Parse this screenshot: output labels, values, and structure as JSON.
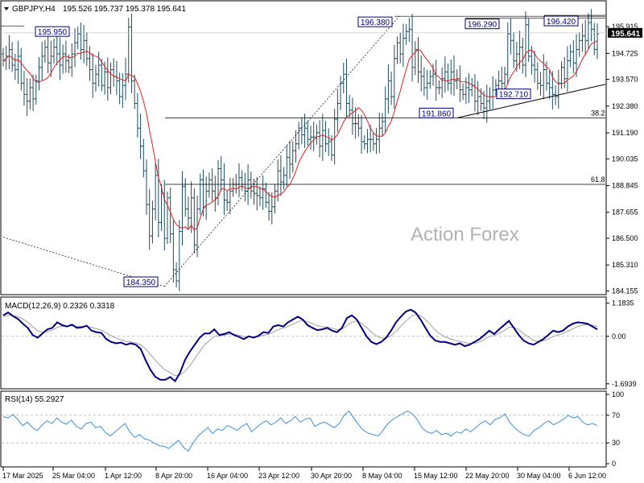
{
  "header": {
    "symbol_timeframe": "GBPJPY,H4",
    "ohlc": "195.526 195.737 195.378 195.641"
  },
  "watermark": "Action Forex",
  "colors": {
    "bar": "#1e4e60",
    "ma": "#e02020",
    "macd": "#000080",
    "macd_signal": "#a0a0a0",
    "rsi": "#3c8ed8",
    "level_line": "#000000",
    "border": "#000000"
  },
  "chart_data": [
    {
      "type": "ohlc",
      "panel": "price",
      "title": "GBPJPY,H4",
      "ylim": [
        184.1,
        196.6
      ],
      "y_ticks": [
        "195.915",
        "194.725",
        "193.570",
        "192.380",
        "191.190",
        "190.035",
        "188.845",
        "187.655",
        "186.500",
        "185.310",
        "184.155"
      ],
      "x_ticks": [
        "17 Mar 2025",
        "25 Mar 04:00",
        "1 Apr 12:00",
        "8 Apr 20:00",
        "16 Apr 04:00",
        "23 Apr 12:00",
        "30 Apr 20:00",
        "8 May 04:00",
        "15 May 12:00",
        "22 May 20:00",
        "30 May 04:00",
        "6 Jun 12:00"
      ],
      "current_price": "195.641",
      "series": [
        {
          "name": "close",
          "values": [
            194.4,
            194.6,
            194.9,
            194.2,
            194.0,
            194.6,
            193.4,
            192.9,
            192.6,
            193.2,
            192.7,
            193.5,
            194.1,
            194.6,
            195.0,
            194.3,
            194.6,
            195.0,
            194.7,
            194.2,
            194.7,
            194.4,
            194.1,
            194.7,
            195.2,
            195.6,
            194.9,
            195.3,
            194.5,
            194.0,
            193.4,
            193.8,
            194.2,
            193.3,
            193.9,
            193.2,
            194.0,
            193.7,
            193.5,
            192.8,
            193.3,
            193.8,
            195.9,
            193.5,
            192.5,
            191.4,
            190.6,
            189.5,
            188.0,
            186.6,
            187.8,
            189.3,
            187.2,
            188.5,
            186.5,
            188.3,
            186.7,
            185.1,
            184.6,
            186.8,
            188.8,
            187.8,
            187.4,
            188.3,
            186.2,
            187.8,
            189.1,
            187.9,
            188.6,
            189.1,
            188.6,
            188.3,
            189.6,
            189.1,
            188.2,
            188.1,
            188.6,
            188.9,
            188.9,
            189.2,
            188.9,
            188.6,
            189.1,
            188.6,
            188.5,
            188.4,
            188.3,
            188.7,
            188.1,
            187.7,
            187.9,
            188.6,
            189.5,
            189.0,
            189.3,
            190.1,
            189.8,
            190.4,
            190.7,
            191.4,
            191.1,
            191.4,
            190.9,
            191.0,
            191.0,
            191.2,
            190.6,
            191.3,
            190.7,
            190.8,
            190.2,
            191.8,
            192.5,
            193.4,
            193.8,
            192.5,
            192.2,
            191.6,
            191.6,
            191.4,
            190.8,
            190.7,
            190.9,
            190.9,
            190.7,
            190.9,
            191.4,
            191.7,
            192.7,
            193.5,
            192.8,
            194.5,
            195.2,
            194.7,
            195.4,
            195.7,
            195.8,
            194.1,
            194.9,
            193.9,
            193.7,
            193.2,
            193.4,
            193.7,
            193.8,
            193.2,
            193.2,
            193.6,
            193.9,
            193.4,
            193.9,
            193.5,
            193.6,
            193.1,
            192.9,
            193.2,
            193.1,
            193.3,
            192.6,
            192.8,
            192.5,
            192.3,
            192.6,
            192.8,
            193.1,
            193.3,
            193.5,
            193.4,
            193.8,
            195.6,
            195.3,
            194.4,
            194.7,
            195.0,
            194.2,
            196.0,
            194.6,
            194.2,
            194.0,
            193.4,
            193.3,
            194.0,
            193.4,
            193.2,
            192.9,
            192.8,
            193.4,
            194.1,
            193.6,
            194.4,
            194.8,
            194.3,
            194.9,
            195.3,
            195.5,
            195.3,
            196.1,
            195.8,
            194.9,
            195.6
          ]
        },
        {
          "name": "moving-average",
          "values": []
        }
      ],
      "levels": [
        {
          "label": "38.2",
          "value": 191.86
        },
        {
          "label": "61.8",
          "value": 188.9
        }
      ],
      "annotations": [
        {
          "text": "195.950",
          "value": 195.95
        },
        {
          "text": "184.350",
          "value": 184.35
        },
        {
          "text": "196.380",
          "value": 196.38
        },
        {
          "text": "196.290",
          "value": 196.29
        },
        {
          "text": "196.420",
          "value": 196.42
        },
        {
          "text": "192.710",
          "value": 192.71
        },
        {
          "text": "191.860",
          "value": 191.86
        }
      ]
    },
    {
      "type": "line",
      "panel": "macd",
      "title": "MACD(12,26,9) 0.2326 0.3318",
      "ylim": [
        -1.7,
        1.2
      ],
      "y_ticks": [
        "1.1835",
        "0.00",
        "-1.6939"
      ],
      "series": [
        {
          "name": "macd",
          "values": [
            0.75,
            0.85,
            0.72,
            0.62,
            0.45,
            0.3,
            0.05,
            -0.05,
            0.1,
            0.25,
            0.3,
            0.5,
            0.4,
            0.35,
            0.42,
            0.3,
            0.32,
            0.38,
            0.2,
            0.15,
            0.12,
            -0.1,
            -0.2,
            -0.25,
            -0.22,
            -0.3,
            -0.25,
            -0.3,
            -0.45,
            -0.85,
            -1.2,
            -1.45,
            -1.55,
            -1.55,
            -1.45,
            -1.6,
            -1.3,
            -0.85,
            -0.55,
            -0.3,
            -0.05,
            0.1,
            0.1,
            0.25,
            0.05,
            0.08,
            0.15,
            0.05,
            -0.02,
            -0.1,
            0.0,
            -0.05,
            0.02,
            0.15,
            0.12,
            0.35,
            0.4,
            0.35,
            0.5,
            0.6,
            0.7,
            0.6,
            0.4,
            0.3,
            0.22,
            0.25,
            0.3,
            0.2,
            0.15,
            0.3,
            0.65,
            0.75,
            0.6,
            0.3,
            0.0,
            -0.2,
            -0.28,
            -0.2,
            -0.05,
            0.2,
            0.5,
            0.7,
            0.88,
            0.95,
            0.85,
            0.6,
            0.3,
            0.02,
            -0.15,
            -0.2,
            -0.2,
            -0.25,
            -0.3,
            -0.25,
            -0.35,
            -0.3,
            -0.2,
            -0.1,
            0.05,
            0.2,
            0.08,
            0.25,
            0.4,
            0.55,
            0.3,
            0.05,
            -0.15,
            -0.25,
            -0.3,
            -0.2,
            -0.1,
            0.05,
            0.2,
            0.15,
            0.2,
            0.35,
            0.45,
            0.5,
            0.48,
            0.45,
            0.35,
            0.25
          ]
        },
        {
          "name": "signal",
          "values": [
            0.7,
            0.75,
            0.74,
            0.7,
            0.62,
            0.5,
            0.35,
            0.2,
            0.15,
            0.18,
            0.22,
            0.32,
            0.36,
            0.36,
            0.38,
            0.36,
            0.35,
            0.36,
            0.32,
            0.27,
            0.22,
            0.12,
            0.02,
            -0.06,
            -0.12,
            -0.18,
            -0.2,
            -0.24,
            -0.3,
            -0.45,
            -0.65,
            -0.85,
            -1.05,
            -1.2,
            -1.3,
            -1.4,
            -1.38,
            -1.25,
            -1.05,
            -0.8,
            -0.55,
            -0.3,
            -0.15,
            0.0,
            0.02,
            0.04,
            0.08,
            0.07,
            0.04,
            -0.01,
            -0.01,
            -0.02,
            -0.01,
            0.04,
            0.07,
            0.15,
            0.24,
            0.29,
            0.36,
            0.43,
            0.52,
            0.56,
            0.52,
            0.46,
            0.38,
            0.34,
            0.33,
            0.29,
            0.24,
            0.26,
            0.38,
            0.5,
            0.55,
            0.47,
            0.32,
            0.15,
            0.02,
            -0.06,
            -0.07,
            0.02,
            0.18,
            0.36,
            0.54,
            0.7,
            0.78,
            0.74,
            0.6,
            0.42,
            0.22,
            0.08,
            -0.02,
            -0.08,
            -0.14,
            -0.18,
            -0.22,
            -0.25,
            -0.24,
            -0.2,
            -0.12,
            0.0,
            0.03,
            0.1,
            0.2,
            0.32,
            0.32,
            0.24,
            0.1,
            -0.03,
            -0.14,
            -0.18,
            -0.16,
            -0.1,
            0.0,
            0.05,
            0.1,
            0.18,
            0.27,
            0.35,
            0.4,
            0.42,
            0.4,
            0.35
          ]
        }
      ]
    },
    {
      "type": "line",
      "panel": "rsi",
      "title": "RSI(14) 55.2927",
      "ylim": [
        0,
        100
      ],
      "y_ticks": [
        "100",
        "70",
        "30",
        "0"
      ],
      "levels": [
        70,
        30
      ],
      "series": [
        {
          "name": "rsi",
          "values": [
            68,
            66,
            71,
            64,
            55,
            60,
            52,
            48,
            56,
            62,
            58,
            66,
            60,
            57,
            63,
            54,
            50,
            58,
            60,
            52,
            54,
            45,
            40,
            46,
            52,
            58,
            46,
            38,
            42,
            36,
            34,
            30,
            26,
            25,
            22,
            28,
            34,
            24,
            18,
            30,
            40,
            46,
            52,
            44,
            50,
            48,
            55,
            52,
            48,
            54,
            58,
            46,
            52,
            58,
            62,
            56,
            60,
            66,
            58,
            62,
            68,
            60,
            64,
            66,
            54,
            58,
            60,
            56,
            52,
            58,
            70,
            76,
            66,
            56,
            48,
            44,
            42,
            40,
            48,
            58,
            64,
            68,
            72,
            76,
            72,
            64,
            52,
            46,
            44,
            48,
            42,
            44,
            40,
            46,
            44,
            50,
            46,
            52,
            58,
            62,
            56,
            64,
            66,
            72,
            60,
            52,
            46,
            42,
            40,
            48,
            52,
            58,
            62,
            56,
            60,
            64,
            70,
            66,
            68,
            60,
            56,
            58,
            55
          ]
        }
      ]
    }
  ]
}
